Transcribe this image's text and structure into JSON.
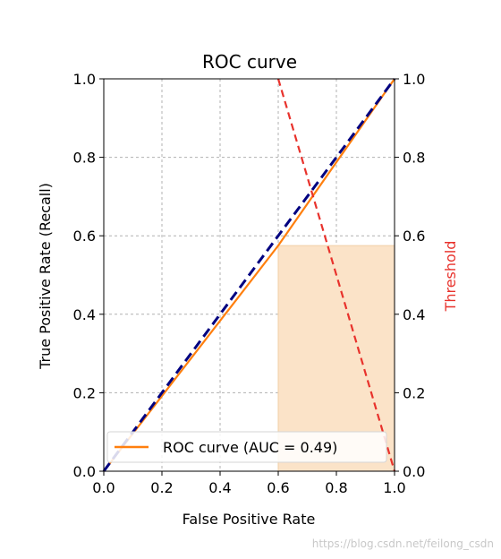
{
  "chart_data": {
    "type": "line",
    "title": "ROC curve",
    "xlabel": "False Positive Rate",
    "ylabel": "True Positive Rate (Recall)",
    "y2label": "Threshold",
    "xlim": [
      0.0,
      1.0
    ],
    "ylim": [
      0.0,
      1.0
    ],
    "y2lim": [
      0.0,
      1.0
    ],
    "xticks": [
      "0.0",
      "0.2",
      "0.4",
      "0.6",
      "0.8",
      "1.0"
    ],
    "yticks": [
      "0.0",
      "0.2",
      "0.4",
      "0.6",
      "0.8",
      "1.0"
    ],
    "y2ticks": [
      "0.0",
      "0.2",
      "0.4",
      "0.6",
      "0.8",
      "1.0"
    ],
    "grid": true,
    "legend_position": "lower-left",
    "series": [
      {
        "name": "ROC curve (AUC = 0.49)",
        "color": "#ff7f0e",
        "style": "solid",
        "x": [
          0.0,
          0.6,
          1.0
        ],
        "y": [
          0.0,
          0.575,
          1.0
        ]
      },
      {
        "color": "#000080",
        "style": "dashed",
        "x": [
          0.0,
          1.0
        ],
        "y": [
          0.0,
          1.0
        ]
      },
      {
        "color": "#e8322c",
        "style": "dashed",
        "axis": "right",
        "x": [
          0.6,
          1.0
        ],
        "y": [
          1.0,
          0.0
        ]
      }
    ],
    "shaded_region": {
      "x": [
        0.6,
        1.0
      ],
      "y": [
        0.0,
        0.575
      ],
      "color": "#fbe3c8"
    }
  },
  "watermark": "https://blog.csdn.net/feilong_csdn"
}
